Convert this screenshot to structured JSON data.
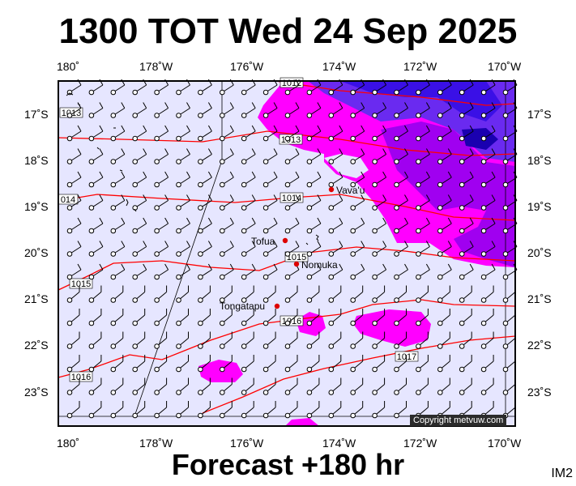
{
  "header": {
    "title": "1300 TOT Wed 24 Sep 2025",
    "subtitle": "Forecast +180 hr",
    "image_id": "IM2"
  },
  "axes": {
    "longitude_labels": [
      "180˚",
      "178˚W",
      "176˚W",
      "174˚W",
      "172˚W",
      "170˚W"
    ],
    "latitude_labels": [
      "17˚S",
      "18˚S",
      "19˚S",
      "20˚S",
      "21˚S",
      "22˚S",
      "23˚S"
    ]
  },
  "places": [
    {
      "name": "Vava'u"
    },
    {
      "name": "Tofua"
    },
    {
      "name": "Nomuka"
    },
    {
      "name": "Tongatapu"
    }
  ],
  "isobars": [
    {
      "label": "1012"
    },
    {
      "label": "1013"
    },
    {
      "label": "1013"
    },
    {
      "label": "014"
    },
    {
      "label": "1014"
    },
    {
      "label": "1015"
    },
    {
      "label": "1015"
    },
    {
      "label": "1016"
    },
    {
      "label": "1016"
    },
    {
      "label": "1017"
    }
  ],
  "copyright": "Copyright metvuw.com",
  "colors": {
    "map_background": "#e6e6ff",
    "rain_light": "#ff00ff",
    "rain_medium": "#a000f0",
    "rain_heavy": "#1e00e6",
    "isobar": "#ff0000",
    "place_marker": "#dd0000"
  }
}
